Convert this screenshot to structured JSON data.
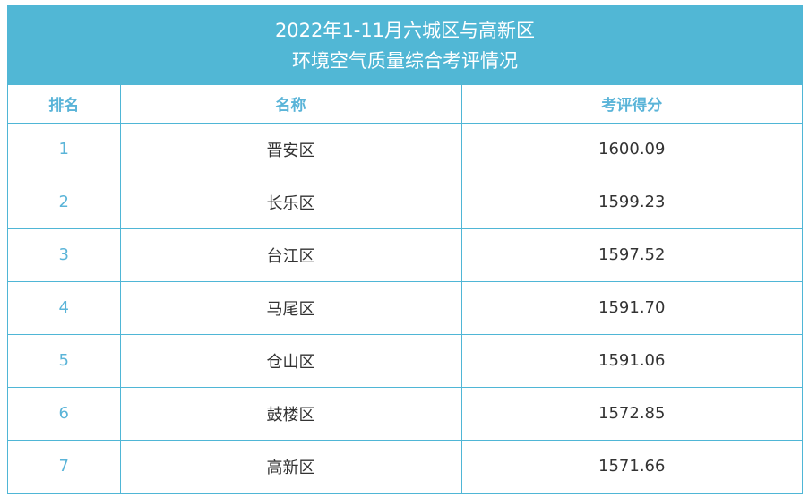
{
  "title": {
    "line1": "2022年1-11月六城区与高新区",
    "line2": "环境空气质量综合考评情况"
  },
  "columns": {
    "rank": "排名",
    "name": "名称",
    "score": "考评得分"
  },
  "rows": [
    {
      "rank": "1",
      "name": "晋安区",
      "score": "1600.09"
    },
    {
      "rank": "2",
      "name": "长乐区",
      "score": "1599.23"
    },
    {
      "rank": "3",
      "name": "台江区",
      "score": "1597.52"
    },
    {
      "rank": "4",
      "name": "马尾区",
      "score": "1591.70"
    },
    {
      "rank": "5",
      "name": "仓山区",
      "score": "1591.06"
    },
    {
      "rank": "6",
      "name": "鼓楼区",
      "score": "1572.85"
    },
    {
      "rank": "7",
      "name": "高新区",
      "score": "1571.66"
    }
  ],
  "colors": {
    "header_background": "#51b7d5",
    "accent_text": "#5ab4d8",
    "border": "#4fb6d6",
    "body_text": "#333333"
  }
}
